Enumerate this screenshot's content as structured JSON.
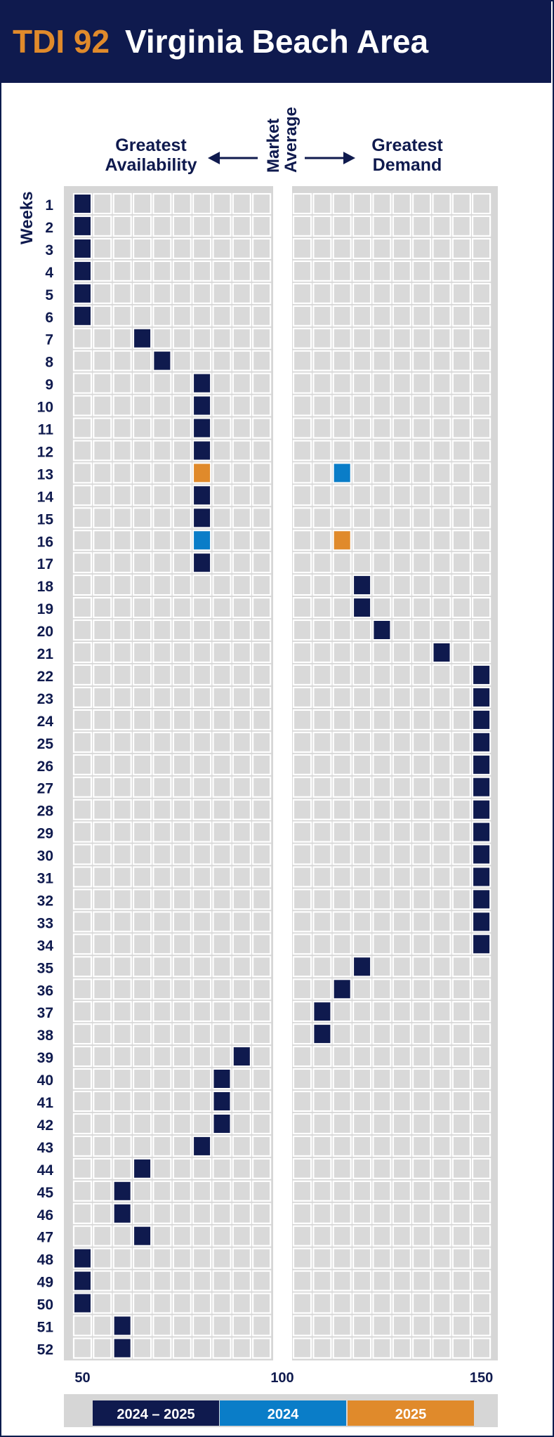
{
  "header": {
    "code": "TDI 92",
    "area": "Virginia Beach Area"
  },
  "labels": {
    "left_line1": "Greatest",
    "left_line2": "Availability",
    "mid_line1": "Market",
    "mid_line2": "Average",
    "right_line1": "Greatest",
    "right_line2": "Demand",
    "weeks": "Weeks"
  },
  "colors": {
    "navy": "#0f1a4e",
    "blue": "#0a7dc8",
    "orange": "#e08a2b",
    "cell": "#d9d9d9",
    "panel": "#d6d6d6"
  },
  "chart_data": {
    "type": "heatmap",
    "title": "Virginia Beach Area",
    "xlim": [
      50,
      150
    ],
    "ticks": [
      50,
      100,
      150
    ],
    "weeks": [
      1,
      2,
      3,
      4,
      5,
      6,
      7,
      8,
      9,
      10,
      11,
      12,
      13,
      14,
      15,
      16,
      17,
      18,
      19,
      20,
      21,
      22,
      23,
      24,
      25,
      26,
      27,
      28,
      29,
      30,
      31,
      32,
      33,
      34,
      35,
      36,
      37,
      38,
      39,
      40,
      41,
      42,
      43,
      44,
      45,
      46,
      47,
      48,
      49,
      50,
      51,
      52
    ],
    "series": [
      {
        "name": "2024 – 2025",
        "color": "#0f1a4e",
        "values": [
          50,
          50,
          50,
          50,
          50,
          50,
          65,
          70,
          80,
          80,
          80,
          80,
          null,
          80,
          80,
          null,
          80,
          120,
          120,
          125,
          140,
          150,
          150,
          150,
          150,
          150,
          150,
          150,
          150,
          150,
          150,
          150,
          150,
          150,
          120,
          115,
          110,
          110,
          90,
          85,
          85,
          85,
          80,
          65,
          60,
          60,
          65,
          50,
          50,
          50,
          60,
          60
        ]
      },
      {
        "name": "2024",
        "color": "#0a7dc8",
        "points": [
          {
            "week": 13,
            "value": 115
          },
          {
            "week": 16,
            "value": 80
          }
        ]
      },
      {
        "name": "2025",
        "color": "#e08a2b",
        "points": [
          {
            "week": 13,
            "value": 80
          },
          {
            "week": 16,
            "value": 115
          }
        ]
      }
    ]
  }
}
